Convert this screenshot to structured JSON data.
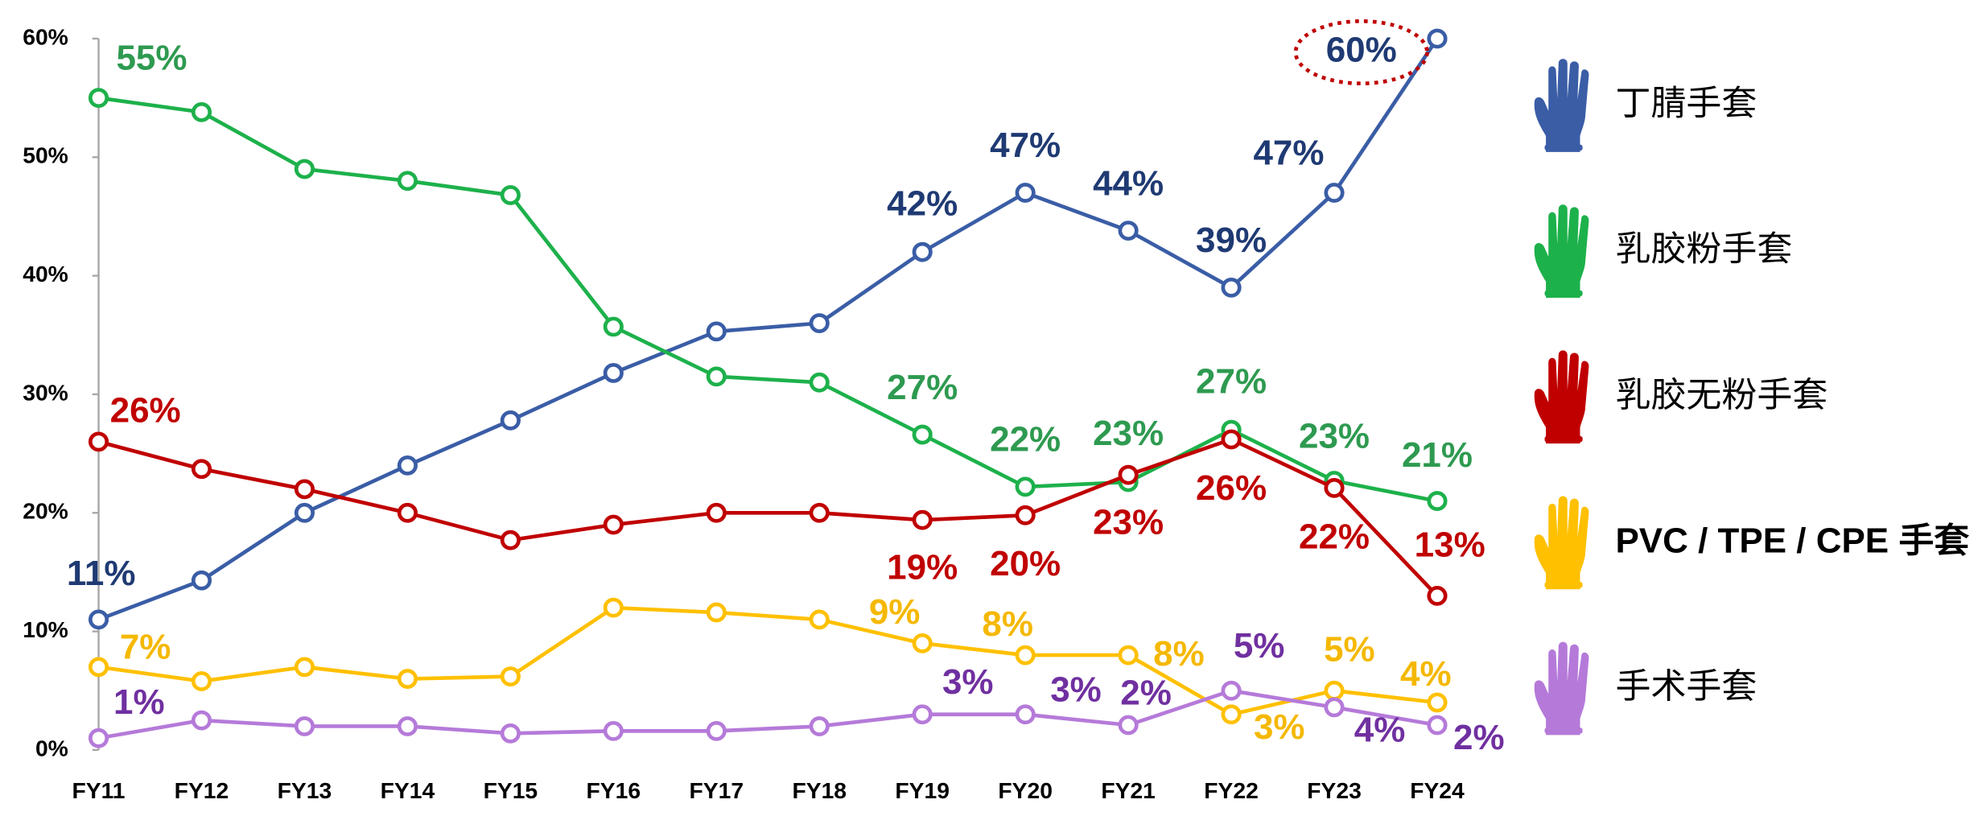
{
  "chart_data": {
    "type": "line",
    "categories": [
      "FY11",
      "FY12",
      "FY13",
      "FY14",
      "FY15",
      "FY16",
      "FY17",
      "FY18",
      "FY19",
      "FY20",
      "FY21",
      "FY22",
      "FY23",
      "FY24"
    ],
    "ylim": [
      0,
      60
    ],
    "yticks": [
      {
        "value": 0,
        "label": "0%"
      },
      {
        "value": 10,
        "label": "10%"
      },
      {
        "value": 20,
        "label": "20%"
      },
      {
        "value": 30,
        "label": "30%"
      },
      {
        "value": 40,
        "label": "40%"
      },
      {
        "value": 50,
        "label": "50%"
      },
      {
        "value": 60,
        "label": "60%"
      }
    ],
    "legend": "right",
    "series": [
      {
        "name": "丁腈手套",
        "color": "#3a5da6",
        "label_color": "#1f3a73",
        "values": [
          11,
          14.3,
          20,
          24,
          27.8,
          31.8,
          35.3,
          36,
          42,
          47,
          43.8,
          39,
          47,
          60
        ],
        "value_labels": [
          "11%",
          null,
          null,
          null,
          null,
          null,
          null,
          null,
          "42%",
          "47%",
          "44%",
          "39%",
          "47%",
          "60%"
        ]
      },
      {
        "name": "乳胶粉手套",
        "color": "#1db14b",
        "label_color": "#2e9a50",
        "values": [
          55,
          53.8,
          49,
          48,
          46.8,
          35.7,
          31.5,
          31,
          26.6,
          22.2,
          22.6,
          27,
          22.7,
          21
        ],
        "value_labels": [
          "55%",
          null,
          null,
          null,
          null,
          null,
          null,
          null,
          "27%",
          "22%",
          "23%",
          "27%",
          "23%",
          "21%"
        ]
      },
      {
        "name": "乳胶无粉手套",
        "color": "#c00000",
        "label_color": "#c00000",
        "values": [
          26,
          23.7,
          22,
          20,
          17.7,
          19,
          20,
          20,
          19.4,
          19.8,
          23.2,
          26.2,
          22.1,
          13
        ],
        "value_labels": [
          "26%",
          null,
          null,
          null,
          null,
          null,
          null,
          null,
          "19%",
          "20%",
          "23%",
          "26%",
          "22%",
          "13%"
        ]
      },
      {
        "name": "PVC / TPE / CPE 手套",
        "color": "#ffc000",
        "label_color": "#f5b800",
        "values": [
          7,
          5.8,
          7,
          6,
          6.2,
          12,
          11.6,
          11,
          9,
          8,
          8,
          3,
          5,
          4
        ],
        "value_labels": [
          "7%",
          null,
          null,
          null,
          null,
          null,
          null,
          null,
          "9%",
          "8%",
          "8%",
          "3%",
          "5%",
          "4%"
        ]
      },
      {
        "name": "手术手套",
        "color": "#b57ad9",
        "label_color": "#7030a0",
        "values": [
          1,
          2.5,
          2,
          2,
          1.4,
          1.6,
          1.6,
          2,
          3,
          3,
          2.1,
          5,
          3.6,
          2.1
        ],
        "value_labels": [
          "1%",
          null,
          null,
          null,
          null,
          null,
          null,
          null,
          "3%",
          "3%",
          "2%",
          "5%",
          "4%",
          "2%"
        ]
      }
    ]
  }
}
